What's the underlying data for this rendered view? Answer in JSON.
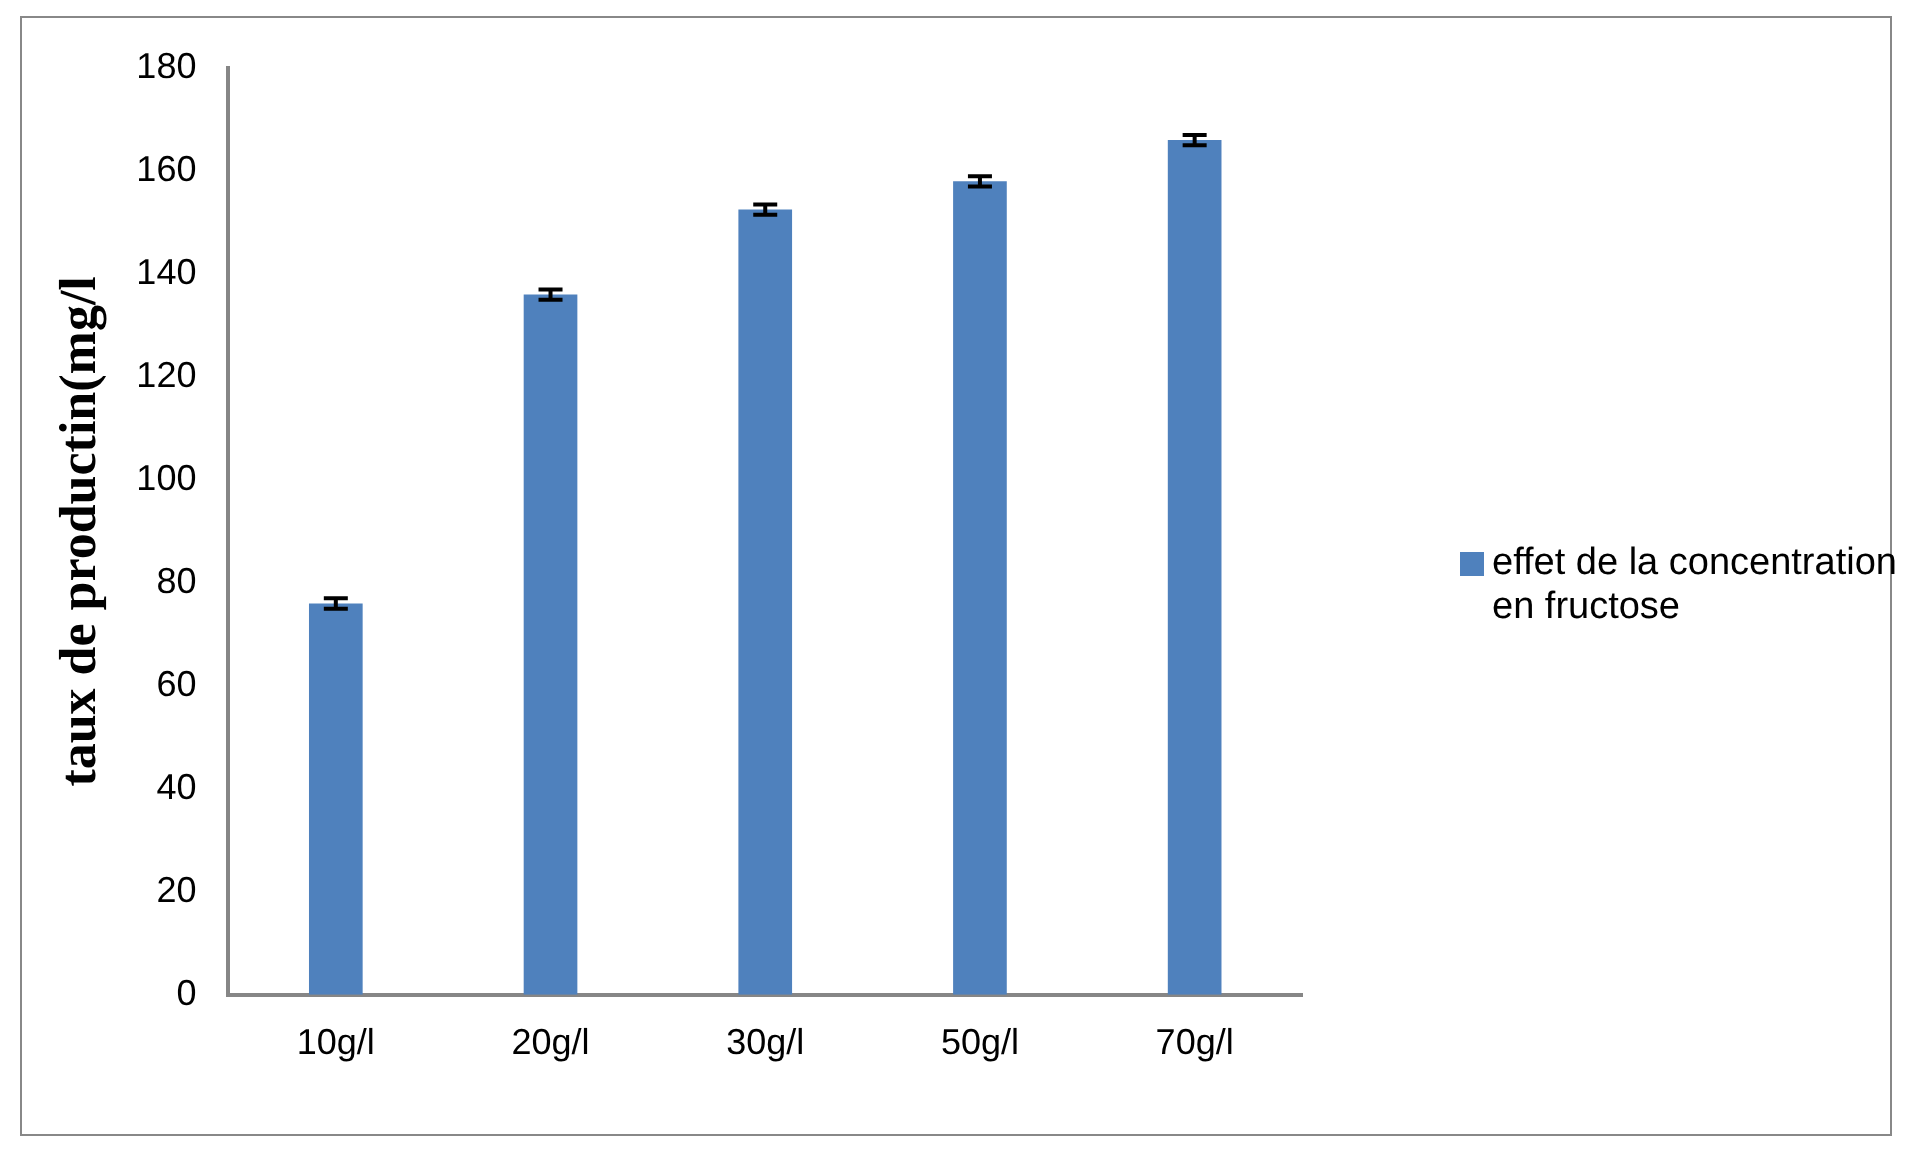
{
  "chart_data": {
    "type": "bar",
    "ylabel": "taux de productin(mg/l",
    "categories": [
      "10g/l",
      "20g/l",
      "30g/l",
      "50g/l",
      "70g/l"
    ],
    "series": [
      {
        "name": "effet de la concentration en fructose",
        "color": "#4f81bd",
        "values": [
          76,
          136,
          152.5,
          158,
          166
        ],
        "errors": [
          1,
          1,
          1,
          1,
          1
        ]
      }
    ],
    "ylim": [
      0,
      180
    ],
    "yticks": [
      0,
      20,
      40,
      60,
      80,
      100,
      120,
      140,
      160,
      180
    ],
    "grid": false,
    "legend": "right"
  }
}
